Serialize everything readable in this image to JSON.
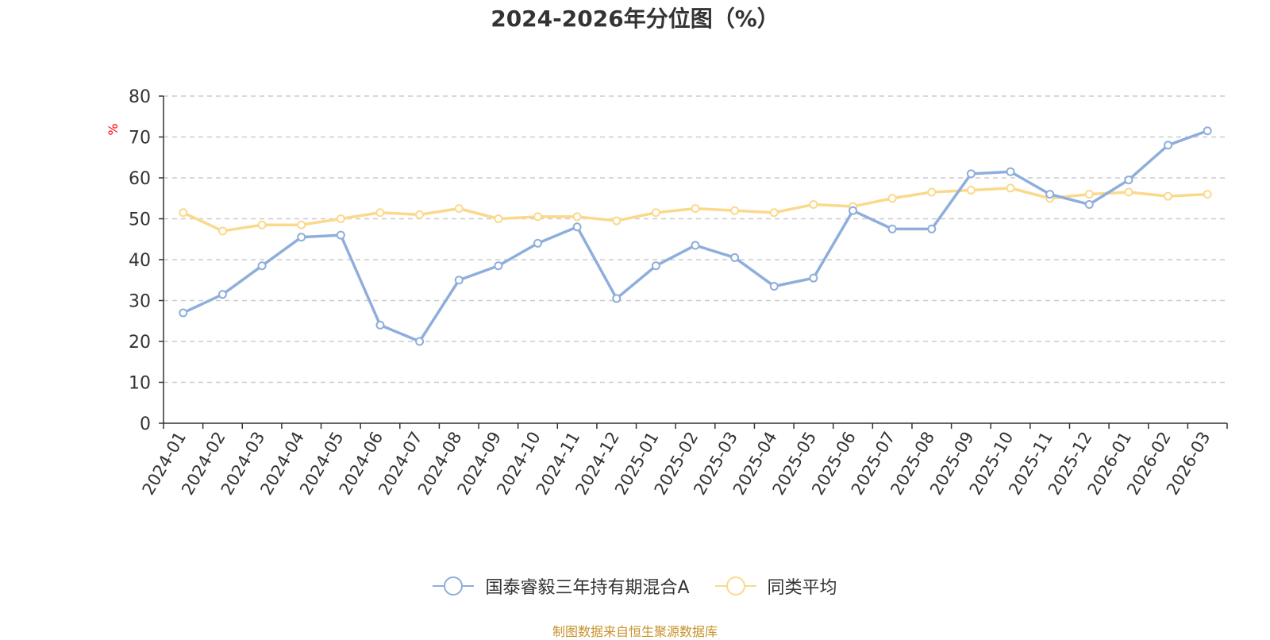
{
  "chart_data": {
    "type": "line",
    "title": "2024-2026年分位图（%）",
    "ylabel": "%",
    "xlabel": "",
    "ylim": [
      0,
      80
    ],
    "yticks": [
      0,
      10,
      20,
      30,
      40,
      50,
      60,
      70,
      80
    ],
    "grid": "horizontal dashed",
    "legend_position": "bottom",
    "categories": [
      "2024-01",
      "2024-02",
      "2024-03",
      "2024-04",
      "2024-05",
      "2024-06",
      "2024-07",
      "2024-08",
      "2024-09",
      "2024-10",
      "2024-11",
      "2024-12",
      "2025-01",
      "2025-02",
      "2025-03",
      "2025-04",
      "2025-05",
      "2025-06",
      "2025-07",
      "2025-08",
      "2025-09",
      "2025-10",
      "2025-11",
      "2025-12",
      "2026-01",
      "2026-02",
      "2026-03"
    ],
    "series": [
      {
        "name": "国泰睿毅三年持有期混合A",
        "color": "#8eaedb",
        "values": [
          27.0,
          31.5,
          38.5,
          45.5,
          46.0,
          24.0,
          20.0,
          35.0,
          38.5,
          44.0,
          48.0,
          30.5,
          38.5,
          43.5,
          40.5,
          33.5,
          35.5,
          52.0,
          47.5,
          47.5,
          61.0,
          61.5,
          56.0,
          53.5,
          59.5,
          68.0,
          71.5
        ]
      },
      {
        "name": "同类平均",
        "color": "#fbd98c",
        "values": [
          51.5,
          47.0,
          48.5,
          48.5,
          50.0,
          51.5,
          51.0,
          52.5,
          50.0,
          50.5,
          50.5,
          49.5,
          51.5,
          52.5,
          52.0,
          51.5,
          53.5,
          53.0,
          55.0,
          56.5,
          57.0,
          57.5,
          55.0,
          56.0,
          56.5,
          55.5,
          56.0
        ]
      }
    ]
  },
  "source_note": "制图数据来自恒生聚源数据库",
  "colors": {
    "axis": "#333333",
    "grid": "#cccccc",
    "ylabel": "#ff0000",
    "source": "#c8922a"
  }
}
